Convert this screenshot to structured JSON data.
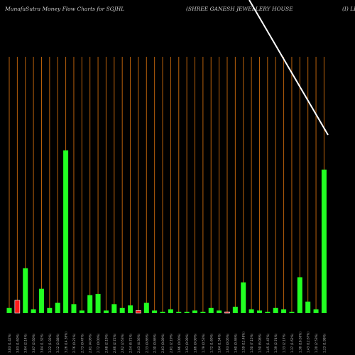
{
  "header": {
    "title": "MunafaSutra  Money Flow  Charts for SGJHL",
    "company": "(SHREE GANESH JEWELLERY HOUSE",
    "suffix": "(I) LI"
  },
  "colors": {
    "background": "#000000",
    "grid": "#b8600b",
    "up": "#22ff22",
    "down": "#ff1a1a",
    "label": "#bbbbbb",
    "trend": "#ffffff"
  },
  "chart_data": {
    "type": "bar",
    "ylim": [
      0,
      100
    ],
    "grid": "vertical",
    "trend_line": {
      "start": [
        22,
        5
      ],
      "end": [
        41,
        48
      ]
    },
    "bars": [
      {
        "label": "3.03 (1.42%)",
        "value": 2.0,
        "dir": "up"
      },
      {
        "label": "3.03 (1.60%)",
        "value": 5.0,
        "dir": "down"
      },
      {
        "label": "3.04 (2.14%)",
        "value": 17.5,
        "dir": "up"
      },
      {
        "label": "3.07 (2.60%)",
        "value": 1.5,
        "dir": "up"
      },
      {
        "label": "3.04 (1.32%)",
        "value": 9.5,
        "dir": "up"
      },
      {
        "label": "3.22 (1.92%)",
        "value": 2.0,
        "dir": "up"
      },
      {
        "label": "3.12 (2.88%)",
        "value": 4.0,
        "dir": "up"
      },
      {
        "label": "3.26 (14.36%)",
        "value": 63.5,
        "dir": "up"
      },
      {
        "label": "2.76 (0.21%)",
        "value": 3.5,
        "dir": "up"
      },
      {
        "label": "2.73 (0.47%)",
        "value": 1.0,
        "dir": "up"
      },
      {
        "label": "2.81 (4.06%)",
        "value": 7.0,
        "dir": "up"
      },
      {
        "label": "2.72 (0.00%)",
        "value": 7.5,
        "dir": "up"
      },
      {
        "label": "2.68 (2.19%)",
        "value": 1.0,
        "dir": "up"
      },
      {
        "label": "2.66 (2.72%)",
        "value": 3.5,
        "dir": "up"
      },
      {
        "label": "2.62 (2.63%)",
        "value": 2.0,
        "dir": "up"
      },
      {
        "label": "2.54 (6.71%)",
        "value": 3.0,
        "dir": "up"
      },
      {
        "label": "2.43 (4.36%)",
        "value": 1.0,
        "dir": "down"
      },
      {
        "label": "2.33 (0.86%)",
        "value": 4.0,
        "dir": "up"
      },
      {
        "label": "2.30 (0.86%)",
        "value": 1.0,
        "dir": "up"
      },
      {
        "label": "2.03 (0.89%)",
        "value": 0.5,
        "dir": "up"
      },
      {
        "label": "2.01 (2.19%)",
        "value": 1.5,
        "dir": "up"
      },
      {
        "label": "1.96 (0.00%)",
        "value": 0.5,
        "dir": "up"
      },
      {
        "label": "1.93 (0.99%)",
        "value": 0.5,
        "dir": "up"
      },
      {
        "label": "1.86 (0.00%)",
        "value": 1.0,
        "dir": "up"
      },
      {
        "label": "1.79 (0.53%)",
        "value": 0.5,
        "dir": "up"
      },
      {
        "label": "1.72 (1.60%)",
        "value": 2.0,
        "dir": "up"
      },
      {
        "label": "1.64 (1.54%)",
        "value": 1.0,
        "dir": "up"
      },
      {
        "label": "1.63 (0.06%)",
        "value": 0.5,
        "dir": "down"
      },
      {
        "label": "1.60 (0.46%)",
        "value": 2.5,
        "dir": "up"
      },
      {
        "label": "1.59 (12.48%)",
        "value": 12.0,
        "dir": "up"
      },
      {
        "label": "1.50 (7.15%)",
        "value": 1.5,
        "dir": "up"
      },
      {
        "label": "1.50 (6.08%)",
        "value": 1.0,
        "dir": "up"
      },
      {
        "label": "1.45 (1.47%)",
        "value": 0.5,
        "dir": "up"
      },
      {
        "label": "1.39 (2.74%)",
        "value": 2.0,
        "dir": "up"
      },
      {
        "label": "1.33 (2.17%)",
        "value": 1.5,
        "dir": "up"
      },
      {
        "label": "1.37 (1.62%)",
        "value": 0.5,
        "dir": "up"
      },
      {
        "label": "1.30 (18.66%)",
        "value": 14.0,
        "dir": "up"
      },
      {
        "label": "1.43 (12.67%)",
        "value": 4.5,
        "dir": "up"
      },
      {
        "label": "1.20 (2.53%)",
        "value": 1.5,
        "dir": "up"
      },
      {
        "label": "1.23 (1.98%)",
        "value": 56.0,
        "dir": "up"
      }
    ]
  }
}
